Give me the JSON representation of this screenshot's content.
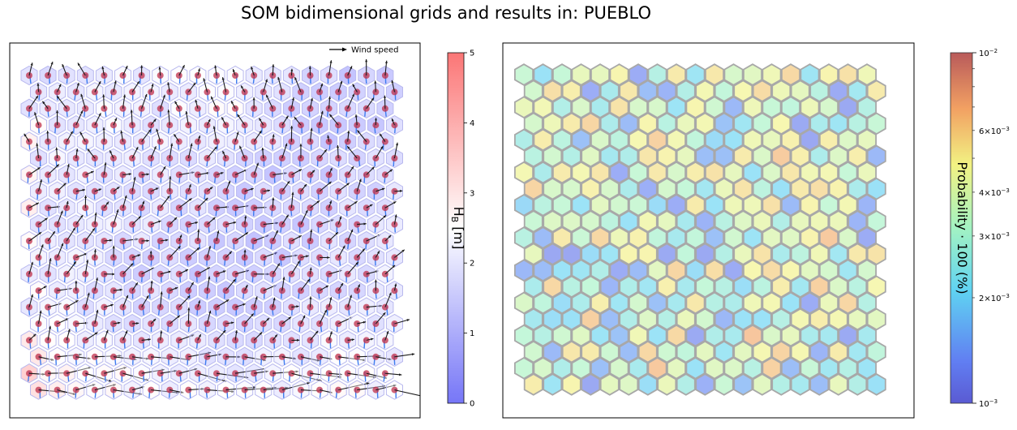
{
  "title": "SOM bidimensional grids and results in: PUEBLO",
  "chart_data": [
    {
      "type": "heatmap",
      "subtype": "hexagonal-som-vector-field",
      "grid": {
        "cols": 20,
        "rows": 20
      },
      "legend": {
        "label": "Wind speed",
        "placement": "top-right"
      },
      "colorbar": {
        "label": "H_B [m]",
        "label_main": "H",
        "label_sub": "B",
        "label_unit": " [m]",
        "range": [
          0,
          5
        ],
        "ticks": [
          "0",
          "1",
          "2",
          "3",
          "4",
          "5"
        ],
        "colormap": "bwr",
        "placement": "right"
      },
      "axes_ticks": false
    },
    {
      "type": "heatmap",
      "subtype": "hexagonal-som-probability",
      "grid": {
        "cols": 19,
        "rows": 20
      },
      "colorbar": {
        "label": "Probability · 100 (%)",
        "scale": "log",
        "range": [
          0.001,
          0.01
        ],
        "major_ticks": [
          "10^-3",
          "10^-2"
        ],
        "minor_ticks": [
          "2×10^-3",
          "3×10^-3",
          "4×10^-3",
          "6×10^-3"
        ],
        "tick_base": "10",
        "tick_exp": "−3",
        "tick_exp_top": "−2",
        "tick_mults": [
          "2×",
          "3×",
          "4×",
          "6×"
        ],
        "colormap": "jet",
        "placement": "right"
      },
      "axes_ticks": false
    }
  ],
  "colors": {
    "arrow": "#1a1a1a",
    "hex_edge_left": "#b9b9ee",
    "hex_edge_right": "#a8a8a8",
    "dot": "#c0304a"
  }
}
